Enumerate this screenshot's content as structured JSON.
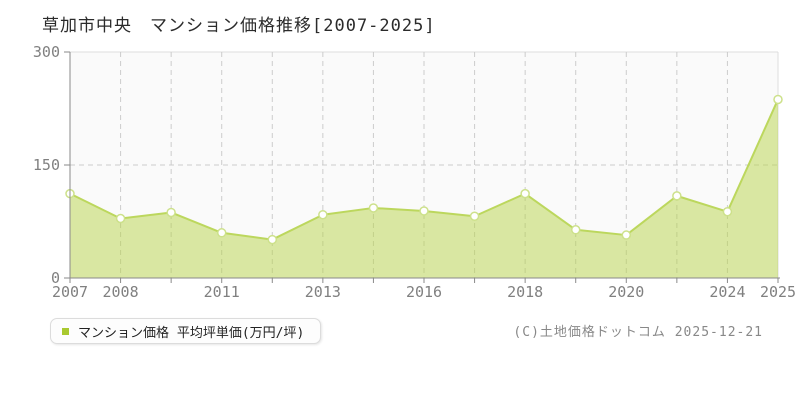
{
  "page": {
    "title": "草加市中央　マンション価格推移[2007-2025]",
    "copyright": "(C)土地価格ドットコム 2025-12-21"
  },
  "legend": {
    "label": "マンション価格 平均坪単価(万円/坪)",
    "marker_color": "#a9c930"
  },
  "chart_data": {
    "type": "area",
    "title": "草加市中央 マンション価格推移[2007-2025]",
    "series": [
      {
        "name": "マンション価格 平均坪単価(万円/坪)",
        "values": [
          112,
          79,
          87,
          60,
          51,
          84,
          93,
          89,
          82,
          112,
          64,
          57,
          109,
          88,
          237
        ]
      }
    ],
    "categories": [
      "2007",
      "2008",
      "",
      "2011",
      "",
      "2013",
      "",
      "2016",
      "",
      "2018",
      "",
      "2020",
      "",
      "2024",
      "2025"
    ],
    "unit": "万円/坪",
    "xlabel": "",
    "ylabel": "平均坪単価(万円/坪)",
    "ylim": [
      0,
      300
    ],
    "yticks": [
      0,
      150,
      300
    ],
    "grid": true,
    "grid_style": "dashed",
    "legend_position": "bottom-left",
    "colors": {
      "line": "#bcd75d",
      "fill": "rgba(184,212,74,0.5)",
      "marker_fill": "#ffffff",
      "marker_stroke": "#cde18b",
      "grid": "#cccccc",
      "axis": "#8a8a8a",
      "border": "#dddddd",
      "plot_bg": "#fafafa",
      "tick_text": "#808080",
      "title_text": "#2b2b2b"
    }
  }
}
